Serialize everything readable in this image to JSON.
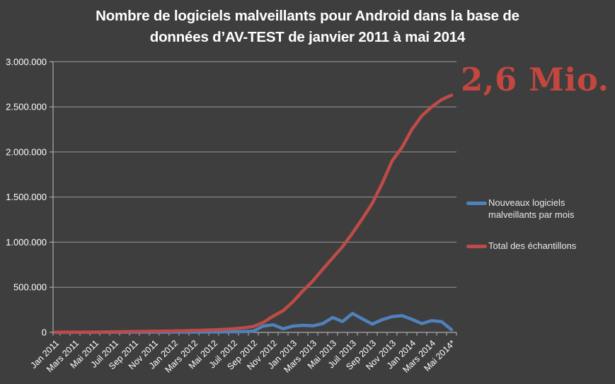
{
  "title": {
    "lines": [
      "Nombre de logiciels malveillants pour Android dans la base de",
      "données d’AV-TEST de janvier 2011 à mai 2014"
    ]
  },
  "annotation": {
    "text": "2,6 Mio.",
    "color": "#c2473f"
  },
  "legend": {
    "items": [
      {
        "label": "Nouveaux logiciels malveillants par mois",
        "color": "#4f81bd"
      },
      {
        "label": "Total des échantillons",
        "color": "#be4b48"
      }
    ]
  },
  "colors": {
    "background": "#3e3e3e",
    "gridline": "#979797",
    "axis": "#ababab",
    "tick_label": "#ffffff",
    "title_text": "#ffffff",
    "legend_text": "#e8e8e8"
  },
  "chart_data": {
    "type": "line",
    "title": "Nombre de logiciels malveillants pour Android dans la base de données d’AV-TEST de janvier 2011 à mai 2014",
    "xlabel": "",
    "ylabel": "",
    "ylim": [
      0,
      3000000
    ],
    "grid": true,
    "legend_position": "right",
    "n_points": 41,
    "label_every_n_points": 2,
    "x_tick_labels": [
      "Jan 2011",
      "Mars 2011",
      "Mai 2011",
      "Juil 2011",
      "Sep 2011",
      "Nov 2011",
      "Jan 2012",
      "Mars 2012",
      "Mai 2012",
      "Juil 2012",
      "Sep 2012",
      "Nov 2012",
      "Jan 2013",
      "Mars 2013",
      "Mai 2013",
      "Juil 2013",
      "Sep 2013",
      "Nov 2013",
      "Jan 2014",
      "Mars 2014",
      "Mai 2014*"
    ],
    "y_tick_labels": [
      "0",
      "500.000",
      "1.000.000",
      "1.500.000",
      "2.000.000",
      "2.500.000",
      "3.000.000"
    ],
    "series": [
      {
        "name": "Nouveaux logiciels malveillants par mois",
        "color": "#4f81bd",
        "values": [
          400,
          500,
          600,
          800,
          1000,
          1300,
          1500,
          1700,
          1900,
          2100,
          2300,
          2500,
          2800,
          3000,
          3500,
          4000,
          5000,
          6000,
          7000,
          9000,
          15000,
          70000,
          85000,
          40000,
          70000,
          78000,
          72000,
          97000,
          165000,
          120000,
          210000,
          150000,
          92000,
          140000,
          175000,
          185000,
          145000,
          97000,
          130000,
          118000,
          30000
        ]
      },
      {
        "name": "Total des échantillons",
        "color": "#be4b48",
        "values": [
          500,
          1000,
          1500,
          2500,
          3500,
          5000,
          6500,
          8000,
          9500,
          11000,
          12500,
          14000,
          16000,
          18000,
          21000,
          24000,
          28000,
          33000,
          40000,
          50000,
          65000,
          110000,
          180000,
          240000,
          340000,
          460000,
          570000,
          700000,
          825000,
          950000,
          1100000,
          1260000,
          1430000,
          1650000,
          1900000,
          2050000,
          2250000,
          2400000,
          2500000,
          2580000,
          2630000
        ]
      }
    ],
    "annotation": {
      "text": "2,6 Mio.",
      "value": 2630000
    }
  }
}
